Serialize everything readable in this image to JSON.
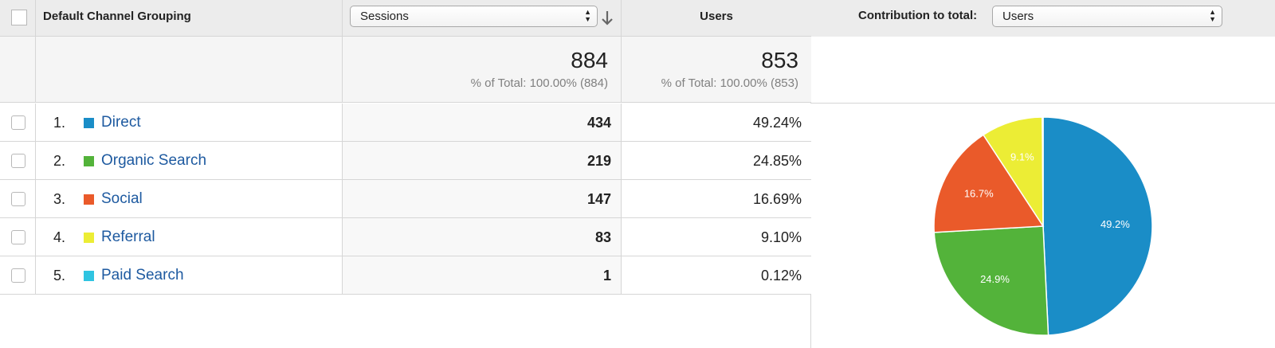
{
  "header": {
    "dimension_label": "Default Channel Grouping",
    "metric_select": "Sessions",
    "users_label": "Users",
    "contribution_label": "Contribution to total:",
    "contribution_select": "Users"
  },
  "totals": {
    "sessions": "884",
    "sessions_pct": "% of Total: 100.00% (884)",
    "users": "853",
    "users_pct": "% of Total: 100.00% (853)"
  },
  "rows": [
    {
      "rank": "1.",
      "name": "Direct",
      "color": "#1a8dc7",
      "sessions": "434",
      "users_pct": "49.24%"
    },
    {
      "rank": "2.",
      "name": "Organic Search",
      "color": "#53b33a",
      "sessions": "219",
      "users_pct": "24.85%"
    },
    {
      "rank": "3.",
      "name": "Social",
      "color": "#ea5a2a",
      "sessions": "147",
      "users_pct": "16.69%"
    },
    {
      "rank": "4.",
      "name": "Referral",
      "color": "#eced35",
      "sessions": "83",
      "users_pct": "9.10%"
    },
    {
      "rank": "5.",
      "name": "Paid Search",
      "color": "#2fc4e1",
      "sessions": "1",
      "users_pct": "0.12%"
    }
  ],
  "chart_data": {
    "type": "pie",
    "slices": [
      {
        "value": 49.24,
        "label": "49.2%",
        "color": "#1a8dc7"
      },
      {
        "value": 24.85,
        "label": "24.9%",
        "color": "#53b33a"
      },
      {
        "value": 16.69,
        "label": "16.7%",
        "color": "#ea5a2a"
      },
      {
        "value": 9.1,
        "label": "9.1%",
        "color": "#eced35"
      },
      {
        "value": 0.12,
        "label": "",
        "color": "#2fc4e1"
      }
    ]
  }
}
